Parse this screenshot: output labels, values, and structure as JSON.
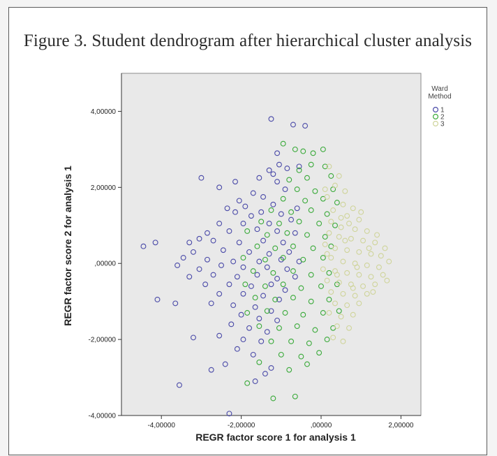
{
  "figure": {
    "title": "Figure 3. Student dendrogram after hierarchical cluster analysis"
  },
  "chart_data": {
    "type": "scatter",
    "title": "Figure 3. Student dendrogram after hierarchical cluster analysis",
    "xlabel": "REGR factor score   1 for analysis 1",
    "ylabel": "REGR factor score   2 for analysis 1",
    "xlim": [
      -5.0,
      2.5
    ],
    "ylim": [
      -4.0,
      5.0
    ],
    "x_ticks": [
      -4,
      -2,
      0,
      2
    ],
    "x_tick_labels": [
      "-4,00000",
      "-2,00000",
      ",00000",
      "2,00000"
    ],
    "y_ticks": [
      -4,
      -2,
      0,
      2,
      4
    ],
    "y_tick_labels": [
      "-4,00000",
      "-2,00000",
      ",00000",
      "2,00000",
      "4,00000"
    ],
    "grid": false,
    "background_color": "#e9e9e9",
    "marker": "open-circle",
    "legend": {
      "title": "Ward Method",
      "placement": "right",
      "entries": [
        {
          "label": "1",
          "color": "#4a4aa8"
        },
        {
          "label": "2",
          "color": "#3aaa3a"
        },
        {
          "label": "3",
          "color": "#cfd49a"
        }
      ]
    },
    "series": [
      {
        "name": "1",
        "color": "#4a4aa8",
        "points": [
          [
            -1.25,
            3.8
          ],
          [
            -0.7,
            3.65
          ],
          [
            -0.4,
            3.62
          ],
          [
            -1.1,
            2.9
          ],
          [
            -1.05,
            2.6
          ],
          [
            -0.55,
            2.55
          ],
          [
            -1.3,
            2.45
          ],
          [
            -0.85,
            2.5
          ],
          [
            -1.2,
            2.35
          ],
          [
            -1.55,
            2.25
          ],
          [
            -2.15,
            2.15
          ],
          [
            -2.55,
            2.0
          ],
          [
            -3.0,
            2.25
          ],
          [
            -1.1,
            2.15
          ],
          [
            -0.9,
            1.95
          ],
          [
            -1.7,
            1.85
          ],
          [
            -1.45,
            1.75
          ],
          [
            -2.05,
            1.65
          ],
          [
            -2.35,
            1.45
          ],
          [
            -1.9,
            1.5
          ],
          [
            -1.2,
            1.55
          ],
          [
            -0.6,
            1.45
          ],
          [
            -1.5,
            1.35
          ],
          [
            -1.75,
            1.25
          ],
          [
            -2.15,
            1.35
          ],
          [
            -1.0,
            1.3
          ],
          [
            -0.75,
            1.15
          ],
          [
            -2.55,
            1.05
          ],
          [
            -1.95,
            1.05
          ],
          [
            -1.3,
            1.05
          ],
          [
            -2.85,
            0.8
          ],
          [
            -2.3,
            0.85
          ],
          [
            -1.6,
            0.9
          ],
          [
            -1.1,
            0.85
          ],
          [
            -0.65,
            0.8
          ],
          [
            -3.05,
            0.65
          ],
          [
            -2.7,
            0.6
          ],
          [
            -2.05,
            0.55
          ],
          [
            -1.45,
            0.6
          ],
          [
            -0.95,
            0.55
          ],
          [
            -3.3,
            0.55
          ],
          [
            -4.15,
            0.55
          ],
          [
            -4.45,
            0.45
          ],
          [
            -3.2,
            0.3
          ],
          [
            -2.45,
            0.35
          ],
          [
            -1.8,
            0.3
          ],
          [
            -1.3,
            0.25
          ],
          [
            -0.8,
            0.3
          ],
          [
            -3.45,
            0.15
          ],
          [
            -2.85,
            0.1
          ],
          [
            -2.2,
            0.05
          ],
          [
            -1.55,
            0.05
          ],
          [
            -1.0,
            0.1
          ],
          [
            -0.55,
            0.05
          ],
          [
            -3.6,
            -0.05
          ],
          [
            -3.05,
            -0.15
          ],
          [
            -2.5,
            -0.05
          ],
          [
            -1.95,
            -0.1
          ],
          [
            -1.35,
            -0.1
          ],
          [
            -0.85,
            -0.15
          ],
          [
            -3.3,
            -0.35
          ],
          [
            -2.7,
            -0.3
          ],
          [
            -2.1,
            -0.35
          ],
          [
            -1.6,
            -0.3
          ],
          [
            -1.1,
            -0.4
          ],
          [
            -0.65,
            -0.35
          ],
          [
            -2.9,
            -0.55
          ],
          [
            -2.3,
            -0.55
          ],
          [
            -1.75,
            -0.6
          ],
          [
            -1.25,
            -0.55
          ],
          [
            -0.9,
            -0.7
          ],
          [
            -2.55,
            -0.8
          ],
          [
            -1.95,
            -0.8
          ],
          [
            -1.45,
            -0.85
          ],
          [
            -1.05,
            -0.95
          ],
          [
            -4.1,
            -0.95
          ],
          [
            -3.65,
            -1.05
          ],
          [
            -2.75,
            -1.05
          ],
          [
            -2.2,
            -1.1
          ],
          [
            -1.65,
            -1.15
          ],
          [
            -1.25,
            -1.25
          ],
          [
            -2.0,
            -1.35
          ],
          [
            -1.55,
            -1.45
          ],
          [
            -1.1,
            -1.5
          ],
          [
            -2.25,
            -1.6
          ],
          [
            -1.8,
            -1.7
          ],
          [
            -1.35,
            -1.8
          ],
          [
            -3.2,
            -1.95
          ],
          [
            -2.55,
            -1.9
          ],
          [
            -1.95,
            -2.0
          ],
          [
            -1.5,
            -2.05
          ],
          [
            -2.1,
            -2.25
          ],
          [
            -1.7,
            -2.4
          ],
          [
            -2.4,
            -2.65
          ],
          [
            -2.75,
            -2.8
          ],
          [
            -1.25,
            -2.75
          ],
          [
            -1.4,
            -2.9
          ],
          [
            -3.55,
            -3.2
          ],
          [
            -1.65,
            -3.1
          ],
          [
            -2.3,
            -3.95
          ]
        ]
      },
      {
        "name": "2",
        "color": "#3aaa3a",
        "points": [
          [
            -0.95,
            3.15
          ],
          [
            -0.65,
            3.0
          ],
          [
            -0.45,
            2.95
          ],
          [
            -0.2,
            2.9
          ],
          [
            0.05,
            3.0
          ],
          [
            -0.25,
            2.6
          ],
          [
            -0.55,
            2.45
          ],
          [
            0.1,
            2.55
          ],
          [
            -0.8,
            2.2
          ],
          [
            -0.35,
            2.25
          ],
          [
            0.25,
            2.3
          ],
          [
            -0.6,
            1.95
          ],
          [
            -0.15,
            1.9
          ],
          [
            0.3,
            1.95
          ],
          [
            -0.95,
            1.7
          ],
          [
            -0.4,
            1.65
          ],
          [
            0.05,
            1.7
          ],
          [
            0.4,
            1.6
          ],
          [
            -1.25,
            1.4
          ],
          [
            -0.75,
            1.35
          ],
          [
            -0.25,
            1.4
          ],
          [
            0.15,
            1.3
          ],
          [
            -1.5,
            1.1
          ],
          [
            -1.05,
            1.05
          ],
          [
            -0.55,
            1.1
          ],
          [
            -0.05,
            1.05
          ],
          [
            0.35,
            1.0
          ],
          [
            -1.85,
            0.85
          ],
          [
            -1.35,
            0.75
          ],
          [
            -0.85,
            0.8
          ],
          [
            -0.35,
            0.75
          ],
          [
            0.1,
            0.7
          ],
          [
            -1.6,
            0.45
          ],
          [
            -1.15,
            0.4
          ],
          [
            -0.7,
            0.45
          ],
          [
            -0.2,
            0.4
          ],
          [
            0.25,
            0.45
          ],
          [
            -1.95,
            0.15
          ],
          [
            -1.4,
            0.1
          ],
          [
            -0.95,
            0.15
          ],
          [
            -0.45,
            0.1
          ],
          [
            0.05,
            0.15
          ],
          [
            -1.7,
            -0.2
          ],
          [
            -1.2,
            -0.25
          ],
          [
            -0.7,
            -0.2
          ],
          [
            -0.25,
            -0.3
          ],
          [
            0.2,
            -0.25
          ],
          [
            -1.9,
            -0.55
          ],
          [
            -1.4,
            -0.6
          ],
          [
            -0.95,
            -0.55
          ],
          [
            -0.5,
            -0.65
          ],
          [
            0.0,
            -0.6
          ],
          [
            0.4,
            -0.55
          ],
          [
            -1.65,
            -0.9
          ],
          [
            -1.15,
            -0.95
          ],
          [
            -0.7,
            -0.9
          ],
          [
            -0.25,
            -1.0
          ],
          [
            0.2,
            -0.95
          ],
          [
            -1.85,
            -1.3
          ],
          [
            -1.35,
            -1.25
          ],
          [
            -0.9,
            -1.3
          ],
          [
            -0.45,
            -1.35
          ],
          [
            0.05,
            -1.3
          ],
          [
            0.45,
            -1.25
          ],
          [
            -1.55,
            -1.65
          ],
          [
            -1.05,
            -1.7
          ],
          [
            -0.6,
            -1.65
          ],
          [
            -0.15,
            -1.75
          ],
          [
            0.3,
            -1.7
          ],
          [
            -1.25,
            -2.05
          ],
          [
            -0.75,
            -2.05
          ],
          [
            -0.3,
            -2.1
          ],
          [
            0.15,
            -2.0
          ],
          [
            -1.0,
            -2.4
          ],
          [
            -0.5,
            -2.45
          ],
          [
            -0.05,
            -2.35
          ],
          [
            -1.55,
            -2.6
          ],
          [
            -0.8,
            -2.8
          ],
          [
            -0.35,
            -2.65
          ],
          [
            -1.85,
            -3.15
          ],
          [
            -0.65,
            -3.5
          ],
          [
            -1.2,
            -3.55
          ]
        ]
      },
      {
        "name": "3",
        "color": "#cfd49a",
        "points": [
          [
            0.2,
            2.55
          ],
          [
            0.45,
            2.3
          ],
          [
            0.35,
            2.05
          ],
          [
            0.6,
            1.9
          ],
          [
            0.15,
            1.75
          ],
          [
            0.55,
            1.55
          ],
          [
            0.8,
            1.45
          ],
          [
            0.3,
            1.4
          ],
          [
            0.65,
            1.25
          ],
          [
            0.95,
            1.15
          ],
          [
            0.25,
            1.1
          ],
          [
            0.5,
            0.95
          ],
          [
            0.85,
            0.9
          ],
          [
            1.15,
            0.85
          ],
          [
            0.2,
            0.8
          ],
          [
            0.45,
            0.7
          ],
          [
            0.75,
            0.65
          ],
          [
            1.05,
            0.6
          ],
          [
            1.35,
            0.55
          ],
          [
            0.1,
            0.5
          ],
          [
            0.35,
            0.4
          ],
          [
            0.65,
            0.35
          ],
          [
            0.95,
            0.3
          ],
          [
            1.25,
            0.25
          ],
          [
            1.5,
            0.2
          ],
          [
            0.25,
            0.15
          ],
          [
            0.55,
            0.05
          ],
          [
            0.85,
            0.0
          ],
          [
            1.15,
            -0.05
          ],
          [
            1.45,
            -0.1
          ],
          [
            1.7,
            0.05
          ],
          [
            0.05,
            -0.15
          ],
          [
            0.35,
            -0.2
          ],
          [
            0.65,
            -0.25
          ],
          [
            0.95,
            -0.3
          ],
          [
            1.25,
            -0.35
          ],
          [
            1.55,
            -0.3
          ],
          [
            0.15,
            -0.45
          ],
          [
            0.45,
            -0.5
          ],
          [
            0.75,
            -0.55
          ],
          [
            1.05,
            -0.6
          ],
          [
            1.35,
            -0.55
          ],
          [
            0.25,
            -0.75
          ],
          [
            0.55,
            -0.8
          ],
          [
            0.85,
            -0.85
          ],
          [
            1.15,
            -0.8
          ],
          [
            0.35,
            -1.05
          ],
          [
            0.65,
            -1.1
          ],
          [
            0.95,
            -1.05
          ],
          [
            0.2,
            -1.3
          ],
          [
            0.5,
            -1.4
          ],
          [
            0.8,
            -1.35
          ],
          [
            0.4,
            -1.65
          ],
          [
            0.7,
            -1.7
          ],
          [
            0.3,
            -1.95
          ],
          [
            0.55,
            -2.05
          ],
          [
            1.6,
            0.4
          ],
          [
            1.4,
            0.75
          ],
          [
            1.65,
            -0.45
          ],
          [
            0.1,
            1.95
          ],
          [
            0.7,
            1.05
          ],
          [
            1.0,
            1.35
          ],
          [
            0.9,
            -0.1
          ],
          [
            0.6,
            0.6
          ],
          [
            1.2,
            0.4
          ],
          [
            0.4,
            -0.3
          ],
          [
            0.8,
            -0.65
          ],
          [
            0.15,
            0.25
          ],
          [
            1.3,
            -0.75
          ],
          [
            0.5,
            1.2
          ]
        ]
      }
    ]
  }
}
